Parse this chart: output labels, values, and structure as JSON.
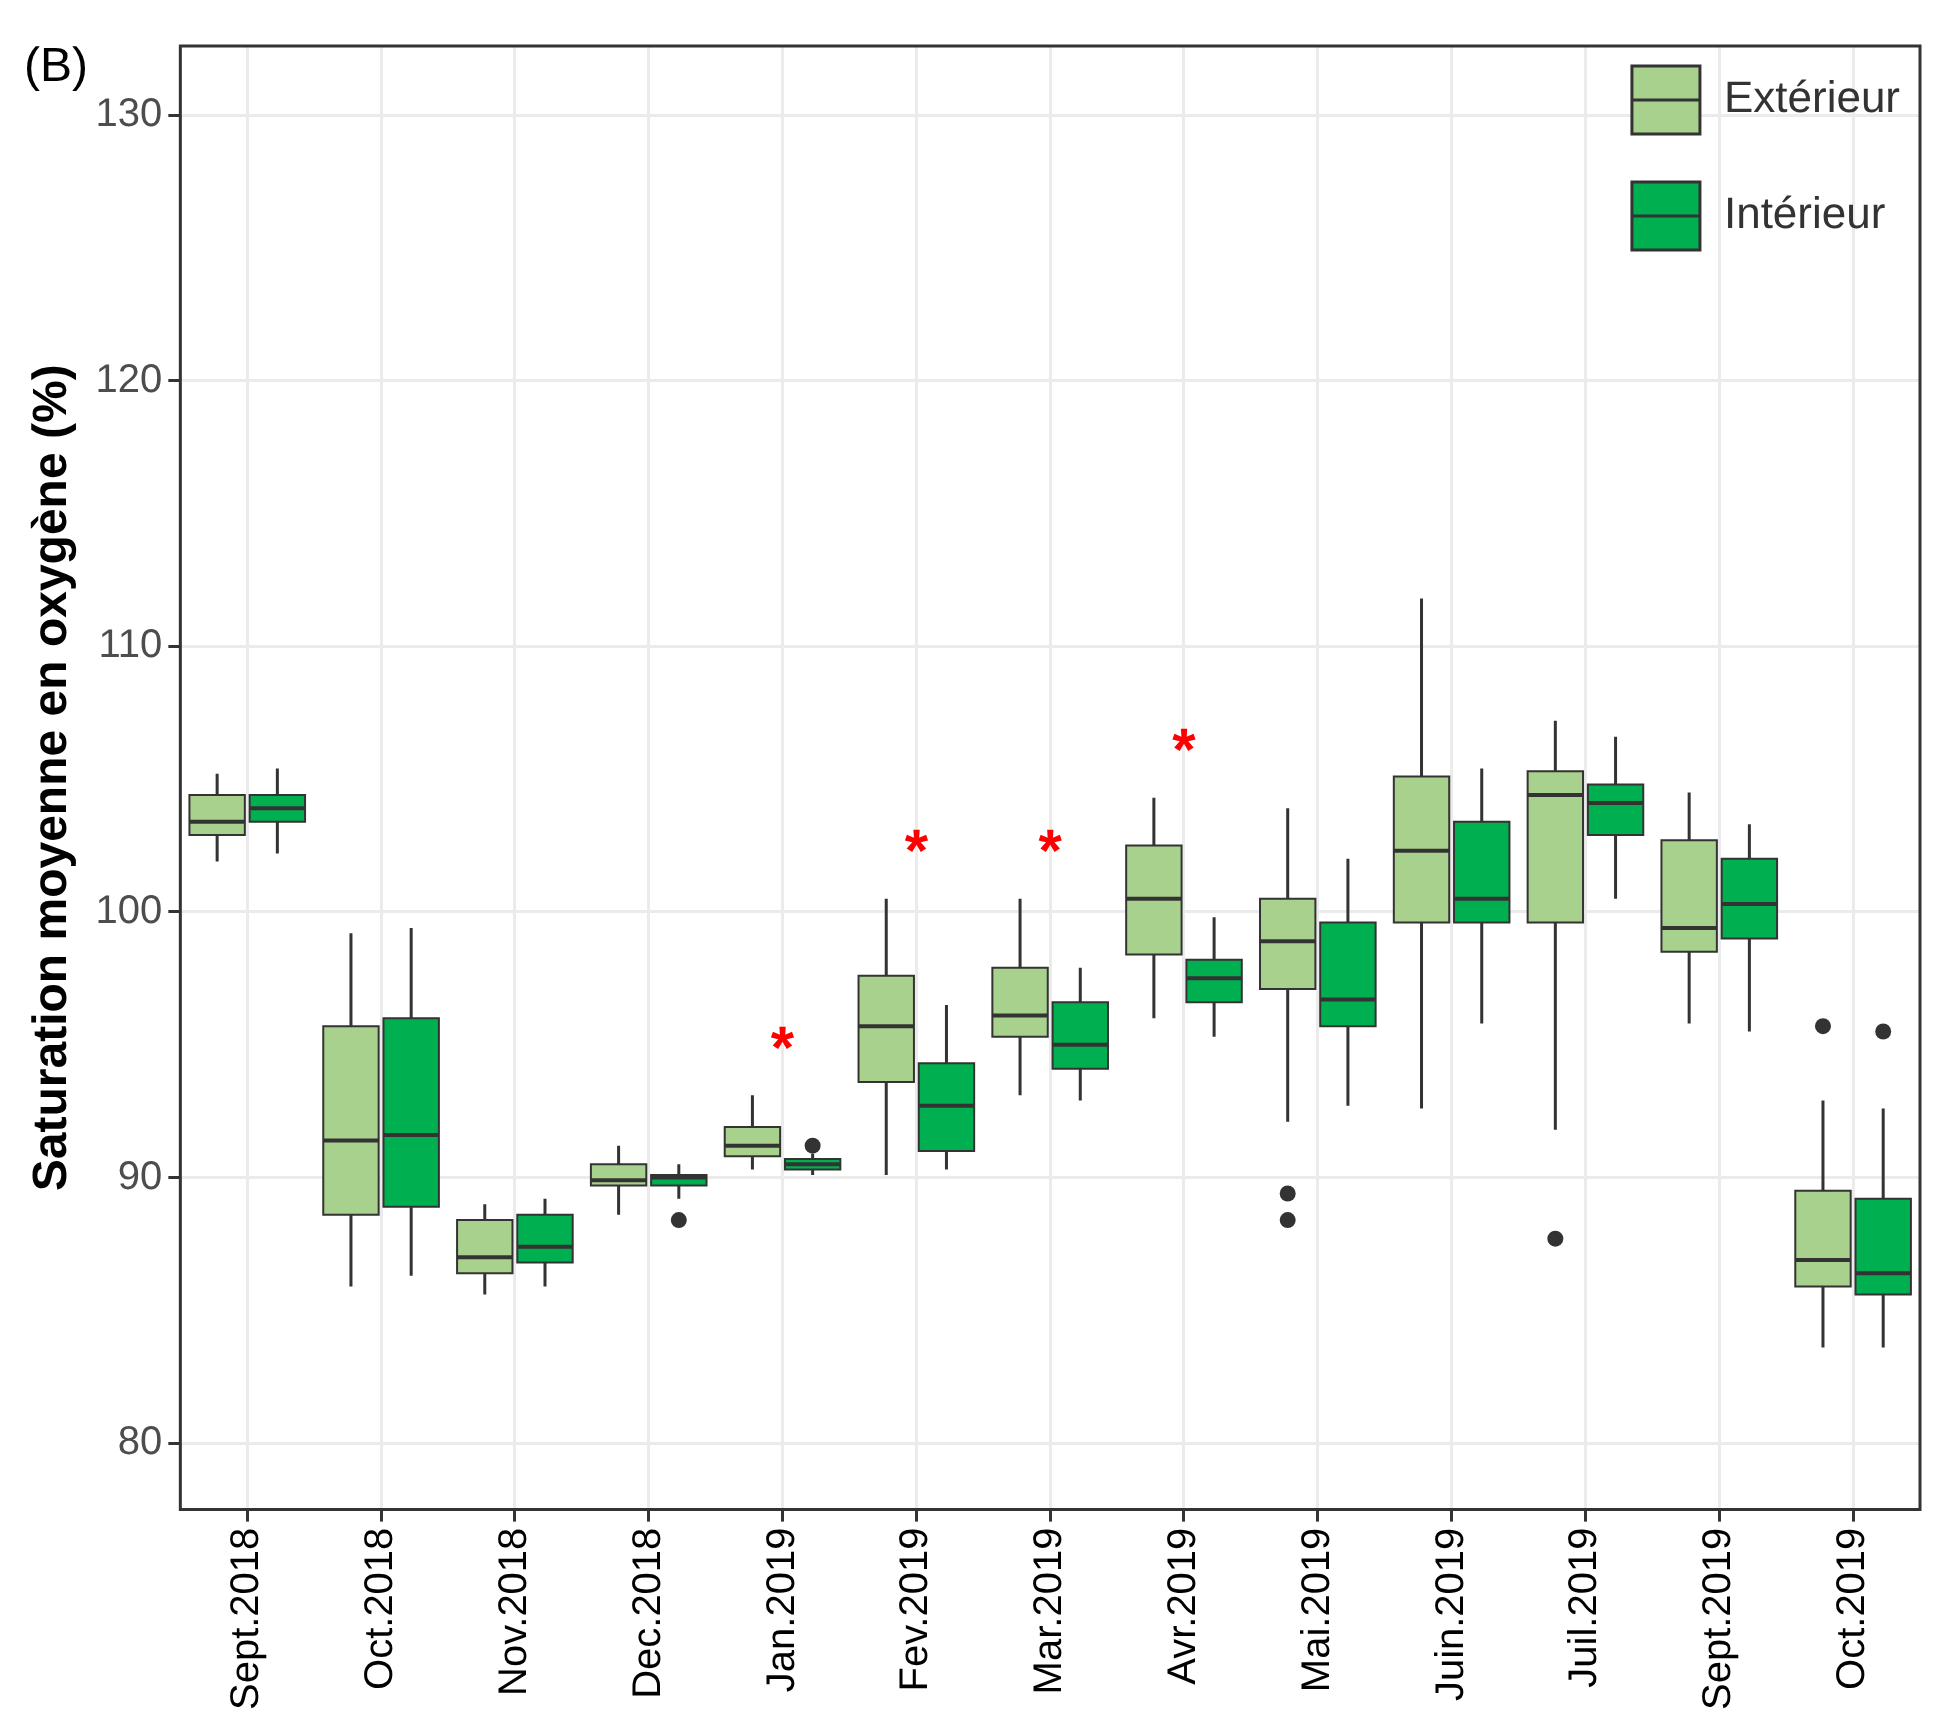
{
  "chart_data": {
    "type": "box",
    "ylabel": "Saturation moyenne en oxygène (%)",
    "categories": [
      "Sept.2018",
      "Oct.2018",
      "Nov.2018",
      "Dec.2018",
      "Jan.2019",
      "Fev.2019",
      "Mar.2019",
      "Avr.2019",
      "Mai.2019",
      "Juin.2019",
      "Juil.2019",
      "Sept.2019",
      "Oct.2019"
    ],
    "series": [
      {
        "name": "Extérieur",
        "color": "#a9d18e",
        "boxes": [
          {
            "low": 101.9,
            "q1": 102.9,
            "median": 103.4,
            "q3": 104.4,
            "high": 105.2
          },
          {
            "low": 85.9,
            "q1": 88.6,
            "median": 91.4,
            "q3": 95.7,
            "high": 99.2
          },
          {
            "low": 85.6,
            "q1": 86.4,
            "median": 87.0,
            "q3": 88.4,
            "high": 89.0
          },
          {
            "low": 88.6,
            "q1": 89.7,
            "median": 89.9,
            "q3": 90.5,
            "high": 91.2
          },
          {
            "low": 90.3,
            "q1": 90.8,
            "median": 91.2,
            "q3": 91.9,
            "high": 93.1
          },
          {
            "low": 90.1,
            "q1": 93.6,
            "median": 95.7,
            "q3": 97.6,
            "high": 100.5
          },
          {
            "low": 93.1,
            "q1": 95.3,
            "median": 96.1,
            "q3": 97.9,
            "high": 100.5
          },
          {
            "low": 96.0,
            "q1": 98.4,
            "median": 100.5,
            "q3": 102.5,
            "high": 104.3
          },
          {
            "low": 92.1,
            "q1": 97.1,
            "median": 98.9,
            "q3": 100.5,
            "high": 103.9,
            "outliers": [
              89.4,
              88.4
            ]
          },
          {
            "low": 92.6,
            "q1": 99.6,
            "median": 102.3,
            "q3": 105.1,
            "high": 111.8
          },
          {
            "low": 91.8,
            "q1": 99.6,
            "median": 104.4,
            "q3": 105.3,
            "high": 107.2,
            "outliers": [
              87.7
            ]
          },
          {
            "low": 95.8,
            "q1": 98.5,
            "median": 99.4,
            "q3": 102.7,
            "high": 104.5
          },
          {
            "low": 83.6,
            "q1": 85.9,
            "median": 86.9,
            "q3": 89.5,
            "high": 92.9,
            "outliers": [
              95.7
            ]
          }
        ]
      },
      {
        "name": "Intérieur",
        "color": "#00b050",
        "boxes": [
          {
            "low": 102.2,
            "q1": 103.4,
            "median": 103.9,
            "q3": 104.4,
            "high": 105.4
          },
          {
            "low": 86.3,
            "q1": 88.9,
            "median": 91.6,
            "q3": 96.0,
            "high": 99.4
          },
          {
            "low": 85.9,
            "q1": 86.8,
            "median": 87.4,
            "q3": 88.6,
            "high": 89.2
          },
          {
            "low": 89.2,
            "q1": 89.7,
            "median": 90.0,
            "q3": 90.1,
            "high": 90.5,
            "outliers": [
              88.4
            ]
          },
          {
            "low": 90.1,
            "q1": 90.3,
            "median": 90.5,
            "q3": 90.7,
            "high": 90.9,
            "outliers": [
              91.2
            ]
          },
          {
            "low": 90.3,
            "q1": 91.0,
            "median": 92.7,
            "q3": 94.3,
            "high": 96.5
          },
          {
            "low": 92.9,
            "q1": 94.1,
            "median": 95.0,
            "q3": 96.6,
            "high": 97.9
          },
          {
            "low": 95.3,
            "q1": 96.6,
            "median": 97.5,
            "q3": 98.2,
            "high": 99.8
          },
          {
            "low": 92.7,
            "q1": 95.7,
            "median": 96.7,
            "q3": 99.6,
            "high": 102.0
          },
          {
            "low": 95.8,
            "q1": 99.6,
            "median": 100.5,
            "q3": 103.4,
            "high": 105.4
          },
          {
            "low": 100.5,
            "q1": 102.9,
            "median": 104.1,
            "q3": 104.8,
            "high": 106.6
          },
          {
            "low": 95.5,
            "q1": 99.0,
            "median": 100.3,
            "q3": 102.0,
            "high": 103.3
          },
          {
            "low": 83.6,
            "q1": 85.6,
            "median": 86.4,
            "q3": 89.2,
            "high": 92.6,
            "outliers": [
              95.5
            ]
          }
        ]
      }
    ],
    "ylim": [
      77.5,
      132.6
    ],
    "yticks": [
      80,
      90,
      100,
      110,
      120,
      130
    ],
    "grid": true,
    "legend": "top right",
    "annotations": [
      "(B)",
      "*",
      "*",
      "*",
      "*"
    ]
  }
}
